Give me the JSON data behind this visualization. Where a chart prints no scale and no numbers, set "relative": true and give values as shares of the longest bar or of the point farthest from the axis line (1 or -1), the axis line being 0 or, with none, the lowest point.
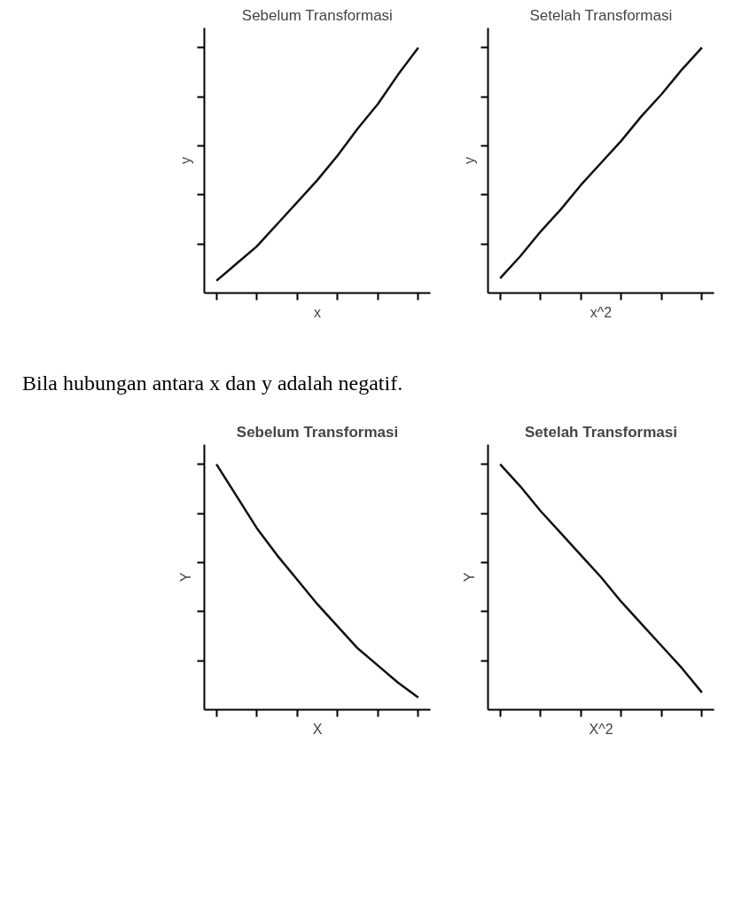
{
  "chart_data": [
    {
      "type": "line",
      "title": "Sebelum Transformasi",
      "xlabel": "x",
      "ylabel": "y",
      "relative": true,
      "tick_labels": false,
      "categories": [
        null,
        null,
        null,
        null,
        null,
        null,
        null,
        null,
        null,
        null,
        null
      ],
      "series": [
        {
          "color": "#111111",
          "values": [
            0.05,
            0.12,
            0.19,
            0.28,
            0.37,
            0.46,
            0.56,
            0.67,
            0.77,
            0.89,
            1.0
          ]
        }
      ]
    },
    {
      "type": "line",
      "title": "Setelah Transformasi",
      "xlabel": "x^2",
      "ylabel": "y",
      "relative": true,
      "tick_labels": false,
      "categories": [
        null,
        null,
        null,
        null,
        null,
        null,
        null,
        null,
        null,
        null,
        null
      ],
      "series": [
        {
          "color": "#111111",
          "values": [
            0.06,
            0.15,
            0.25,
            0.34,
            0.44,
            0.53,
            0.62,
            0.72,
            0.81,
            0.91,
            1.0
          ]
        }
      ]
    },
    {
      "type": "line",
      "title": "Sebelum Transformasi",
      "xlabel": "X",
      "ylabel": "Y",
      "relative": true,
      "tick_labels": false,
      "annotations": [
        "Bila hubungan antara x dan y adalah negatif."
      ],
      "categories": [
        null,
        null,
        null,
        null,
        null,
        null,
        null,
        null,
        null,
        null,
        null
      ],
      "series": [
        {
          "color": "#111111",
          "values": [
            1.0,
            0.87,
            0.74,
            0.63,
            0.53,
            0.43,
            0.34,
            0.25,
            0.18,
            0.11,
            0.05
          ]
        }
      ]
    },
    {
      "type": "line",
      "title": "Setelah Transformasi",
      "xlabel": "X^2",
      "ylabel": "Y",
      "relative": true,
      "tick_labels": false,
      "categories": [
        null,
        null,
        null,
        null,
        null,
        null,
        null,
        null,
        null,
        null,
        null
      ],
      "series": [
        {
          "color": "#111111",
          "values": [
            1.0,
            0.91,
            0.81,
            0.72,
            0.63,
            0.54,
            0.44,
            0.35,
            0.26,
            0.17,
            0.07
          ]
        }
      ]
    }
  ]
}
